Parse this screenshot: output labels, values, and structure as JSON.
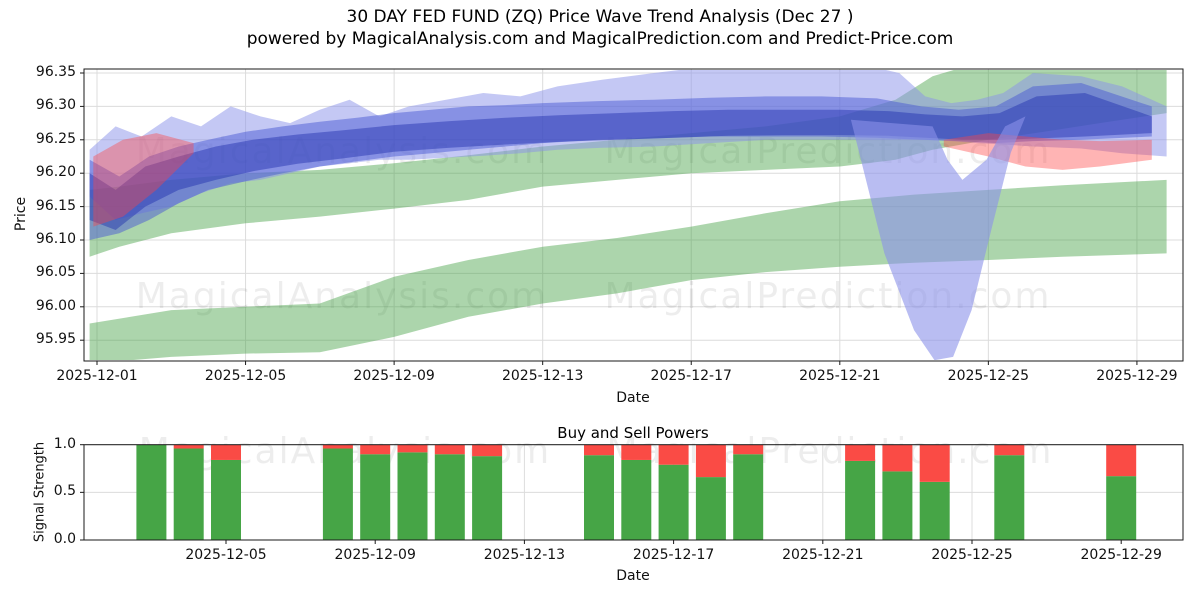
{
  "title": {
    "line1": "30 DAY FED FUND (ZQ) Price Wave Trend Analysis (Dec 27 )",
    "line2": "powered by MagicalAnalysis.com and MagicalPrediction.com and Predict-Price.com"
  },
  "watermarks": {
    "left": "MagicalAnalysis.com",
    "right": "MagicalPrediction.com"
  },
  "colors": {
    "grid": "#dcdcdc",
    "spine": "#1a1a1a",
    "watermark": "#000000",
    "buy": "#46a546",
    "sell": "#fa4b45"
  },
  "chart_data": [
    {
      "type": "area",
      "title": "30 DAY FED FUND (ZQ) Price Wave Trend Analysis (Dec 27 )",
      "subtitle": "powered by MagicalAnalysis.com and MagicalPrediction.com and Predict-Price.com",
      "xlabel": "Date",
      "ylabel": "Price",
      "ylim": [
        95.92,
        96.36
      ],
      "grid": true,
      "legend": "none",
      "y_ticks": [
        "96.35",
        "96.30",
        "96.25",
        "96.20",
        "96.15",
        "96.10",
        "96.05",
        "96.00",
        "95.95"
      ],
      "x_ticks": [
        {
          "label": "2025-12-01",
          "day": 1
        },
        {
          "label": "2025-12-05",
          "day": 5
        },
        {
          "label": "2025-12-09",
          "day": 9
        },
        {
          "label": "2025-12-13",
          "day": 13
        },
        {
          "label": "2025-12-17",
          "day": 17
        },
        {
          "label": "2025-12-21",
          "day": 21
        },
        {
          "label": "2025-12-25",
          "day": 25
        },
        {
          "label": "2025-12-29",
          "day": 29
        }
      ],
      "bands": [
        {
          "name": "support-band-low",
          "color": "#3a9a3a",
          "opacity": 0.42,
          "days": [
            0.8,
            3,
            5,
            7,
            9,
            11,
            13,
            15,
            17,
            19,
            21,
            23,
            25,
            27,
            29.8
          ],
          "lower": [
            95.915,
            95.925,
            95.93,
            95.932,
            95.955,
            95.985,
            96.005,
            96.02,
            96.04,
            96.052,
            96.06,
            96.066,
            96.07,
            96.075,
            96.08
          ],
          "upper": [
            95.975,
            95.995,
            96.0,
            96.005,
            96.045,
            96.07,
            96.09,
            96.103,
            96.12,
            96.14,
            96.158,
            96.168,
            96.175,
            96.182,
            96.19
          ]
        },
        {
          "name": "support-band-mid",
          "color": "#3a9a3a",
          "opacity": 0.42,
          "days": [
            0.8,
            1.6,
            3,
            5,
            7,
            9,
            11,
            13,
            15,
            17,
            19,
            21,
            22.5,
            23.5,
            25,
            26.5,
            28,
            29.8
          ],
          "lower": [
            96.075,
            96.09,
            96.11,
            96.125,
            96.135,
            96.147,
            96.16,
            96.18,
            96.19,
            96.2,
            96.205,
            96.21,
            96.22,
            96.235,
            96.25,
            96.262,
            96.275,
            96.29
          ],
          "upper": [
            96.175,
            96.18,
            96.19,
            96.2,
            96.205,
            96.215,
            96.227,
            96.24,
            96.25,
            96.26,
            96.27,
            96.285,
            96.31,
            96.345,
            96.37,
            96.375,
            96.37,
            96.36
          ]
        },
        {
          "name": "wave-band-light",
          "color": "#8a91ea",
          "opacity": 0.5,
          "days": [
            0.8,
            1.5,
            2.2,
            3,
            3.8,
            4.6,
            5.4,
            6.2,
            7,
            7.8,
            8.6,
            9.4,
            10.4,
            11.4,
            12.4,
            13.4,
            14.6,
            16,
            17.5,
            19,
            20.5,
            21.8,
            22.6,
            23.3,
            24,
            24.7,
            25.4,
            26.2,
            27.5,
            28.6,
            29.8
          ],
          "upper": [
            96.235,
            96.27,
            96.255,
            96.285,
            96.27,
            96.3,
            96.285,
            96.275,
            96.295,
            96.31,
            96.285,
            96.3,
            96.31,
            96.32,
            96.315,
            96.33,
            96.34,
            96.35,
            96.36,
            96.365,
            96.365,
            96.36,
            96.35,
            96.315,
            96.305,
            96.31,
            96.32,
            96.35,
            96.345,
            96.33,
            96.3
          ],
          "lower": [
            96.165,
            96.13,
            96.14,
            96.15,
            96.17,
            96.185,
            96.19,
            96.2,
            96.21,
            96.215,
            96.22,
            96.22,
            96.223,
            96.226,
            96.23,
            96.235,
            96.238,
            96.24,
            96.245,
            96.25,
            96.25,
            96.25,
            96.25,
            96.25,
            96.248,
            96.245,
            96.243,
            96.24,
            96.237,
            96.23,
            96.225
          ]
        },
        {
          "name": "wave-band-main",
          "color": "#4a5ad4",
          "opacity": 0.5,
          "days": [
            0.8,
            1.6,
            2.4,
            3.2,
            4,
            5,
            6,
            7,
            8,
            9,
            10,
            11,
            12,
            13,
            14.5,
            16,
            17.5,
            19,
            20.5,
            22,
            23.2,
            24.2,
            25.2,
            26.2,
            27.5,
            29.4
          ],
          "upper": [
            96.22,
            96.195,
            96.225,
            96.24,
            96.25,
            96.262,
            96.27,
            96.277,
            96.283,
            96.29,
            96.295,
            96.3,
            96.302,
            96.305,
            96.308,
            96.31,
            96.313,
            96.315,
            96.315,
            96.312,
            96.3,
            96.295,
            96.3,
            96.33,
            96.335,
            96.3
          ],
          "lower": [
            96.1,
            96.11,
            96.13,
            96.155,
            96.175,
            96.188,
            96.2,
            96.21,
            96.218,
            96.225,
            96.23,
            96.235,
            96.24,
            96.245,
            96.25,
            96.252,
            96.255,
            96.255,
            96.255,
            96.253,
            96.25,
            96.248,
            96.245,
            96.248,
            96.25,
            96.255
          ]
        },
        {
          "name": "wave-band-dark",
          "color": "#1e2fae",
          "opacity": 0.45,
          "days": [
            0.8,
            1.5,
            2.3,
            3.2,
            4.2,
            5.2,
            6.4,
            7.6,
            9,
            10.5,
            12,
            13.5,
            15,
            16.5,
            18,
            19.5,
            21,
            22.3,
            23.3,
            24.3,
            25.3,
            26.3,
            27.6,
            29.4
          ],
          "upper": [
            96.2,
            96.175,
            96.21,
            96.225,
            96.24,
            96.25,
            96.258,
            96.264,
            96.272,
            96.278,
            96.283,
            96.287,
            96.29,
            96.293,
            96.295,
            96.295,
            96.295,
            96.293,
            96.288,
            96.285,
            96.29,
            96.315,
            96.32,
            96.285
          ],
          "lower": [
            96.13,
            96.115,
            96.15,
            96.175,
            96.19,
            96.203,
            96.214,
            96.222,
            96.232,
            96.238,
            96.243,
            96.247,
            96.25,
            96.253,
            96.256,
            96.257,
            96.257,
            96.256,
            96.253,
            96.25,
            96.25,
            96.252,
            96.255,
            96.26
          ]
        },
        {
          "name": "resistance-band-left",
          "color": "#ff4444",
          "opacity": 0.4,
          "days": [
            0.9,
            1.7,
            2.6,
            3.6
          ],
          "lower": [
            96.12,
            96.135,
            96.175,
            96.23
          ],
          "upper": [
            96.225,
            96.25,
            96.26,
            96.245
          ]
        },
        {
          "name": "resistance-band-right",
          "color": "#ff4444",
          "opacity": 0.4,
          "days": [
            23.8,
            25,
            26,
            27,
            28,
            29.4
          ],
          "lower": [
            96.24,
            96.225,
            96.21,
            96.205,
            96.21,
            96.22
          ],
          "upper": [
            96.25,
            96.26,
            96.255,
            96.25,
            96.248,
            96.25
          ]
        }
      ],
      "dip_band": {
        "name": "forecast-dip-band",
        "color": "#8a91ea",
        "opacity": 0.6,
        "polygon": [
          [
            21.3,
            96.28
          ],
          [
            22.2,
            96.08
          ],
          [
            23.0,
            95.965
          ],
          [
            23.55,
            95.92
          ],
          [
            24.05,
            95.925
          ],
          [
            24.55,
            95.995
          ],
          [
            25.1,
            96.12
          ],
          [
            25.6,
            96.23
          ],
          [
            26.0,
            96.285
          ],
          [
            25.45,
            96.27
          ],
          [
            24.95,
            96.22
          ],
          [
            24.3,
            96.19
          ],
          [
            23.9,
            96.22
          ],
          [
            23.5,
            96.27
          ]
        ]
      }
    },
    {
      "type": "bar",
      "title": "Buy and Sell Powers",
      "xlabel": "Date",
      "ylabel": "Signal Strength",
      "ylim": [
        0,
        1
      ],
      "stacked": true,
      "y_ticks": [
        "0.0",
        "0.5",
        "1.0"
      ],
      "x_ticks": [
        {
          "label": "2025-12-05",
          "day": 5
        },
        {
          "label": "2025-12-09",
          "day": 9
        },
        {
          "label": "2025-12-13",
          "day": 13
        },
        {
          "label": "2025-12-17",
          "day": 17
        },
        {
          "label": "2025-12-21",
          "day": 21
        },
        {
          "label": "2025-12-25",
          "day": 25
        },
        {
          "label": "2025-12-29",
          "day": 29
        }
      ],
      "categories": [
        "2025-12-03",
        "2025-12-04",
        "2025-12-05",
        "2025-12-08",
        "2025-12-09",
        "2025-12-10",
        "2025-12-11",
        "2025-12-12",
        "2025-12-15",
        "2025-12-16",
        "2025-12-17",
        "2025-12-18",
        "2025-12-19",
        "2025-12-22",
        "2025-12-23",
        "2025-12-24",
        "2025-12-26",
        "2025-12-29"
      ],
      "days": [
        3,
        4,
        5,
        8,
        9,
        10,
        11,
        12,
        15,
        16,
        17,
        18,
        19,
        22,
        23,
        24,
        26,
        29
      ],
      "series": [
        {
          "name": "Buy Power",
          "color": "#46a546",
          "values": [
            1.0,
            0.96,
            0.84,
            0.96,
            0.9,
            0.92,
            0.9,
            0.88,
            0.89,
            0.84,
            0.79,
            0.66,
            0.9,
            0.83,
            0.72,
            0.61,
            0.89,
            0.67
          ]
        },
        {
          "name": "Sell Power",
          "color": "#fa4b45",
          "values": [
            0.0,
            0.04,
            0.16,
            0.04,
            0.1,
            0.08,
            0.1,
            0.12,
            0.11,
            0.16,
            0.21,
            0.34,
            0.1,
            0.17,
            0.28,
            0.39,
            0.11,
            0.33
          ]
        }
      ]
    }
  ]
}
